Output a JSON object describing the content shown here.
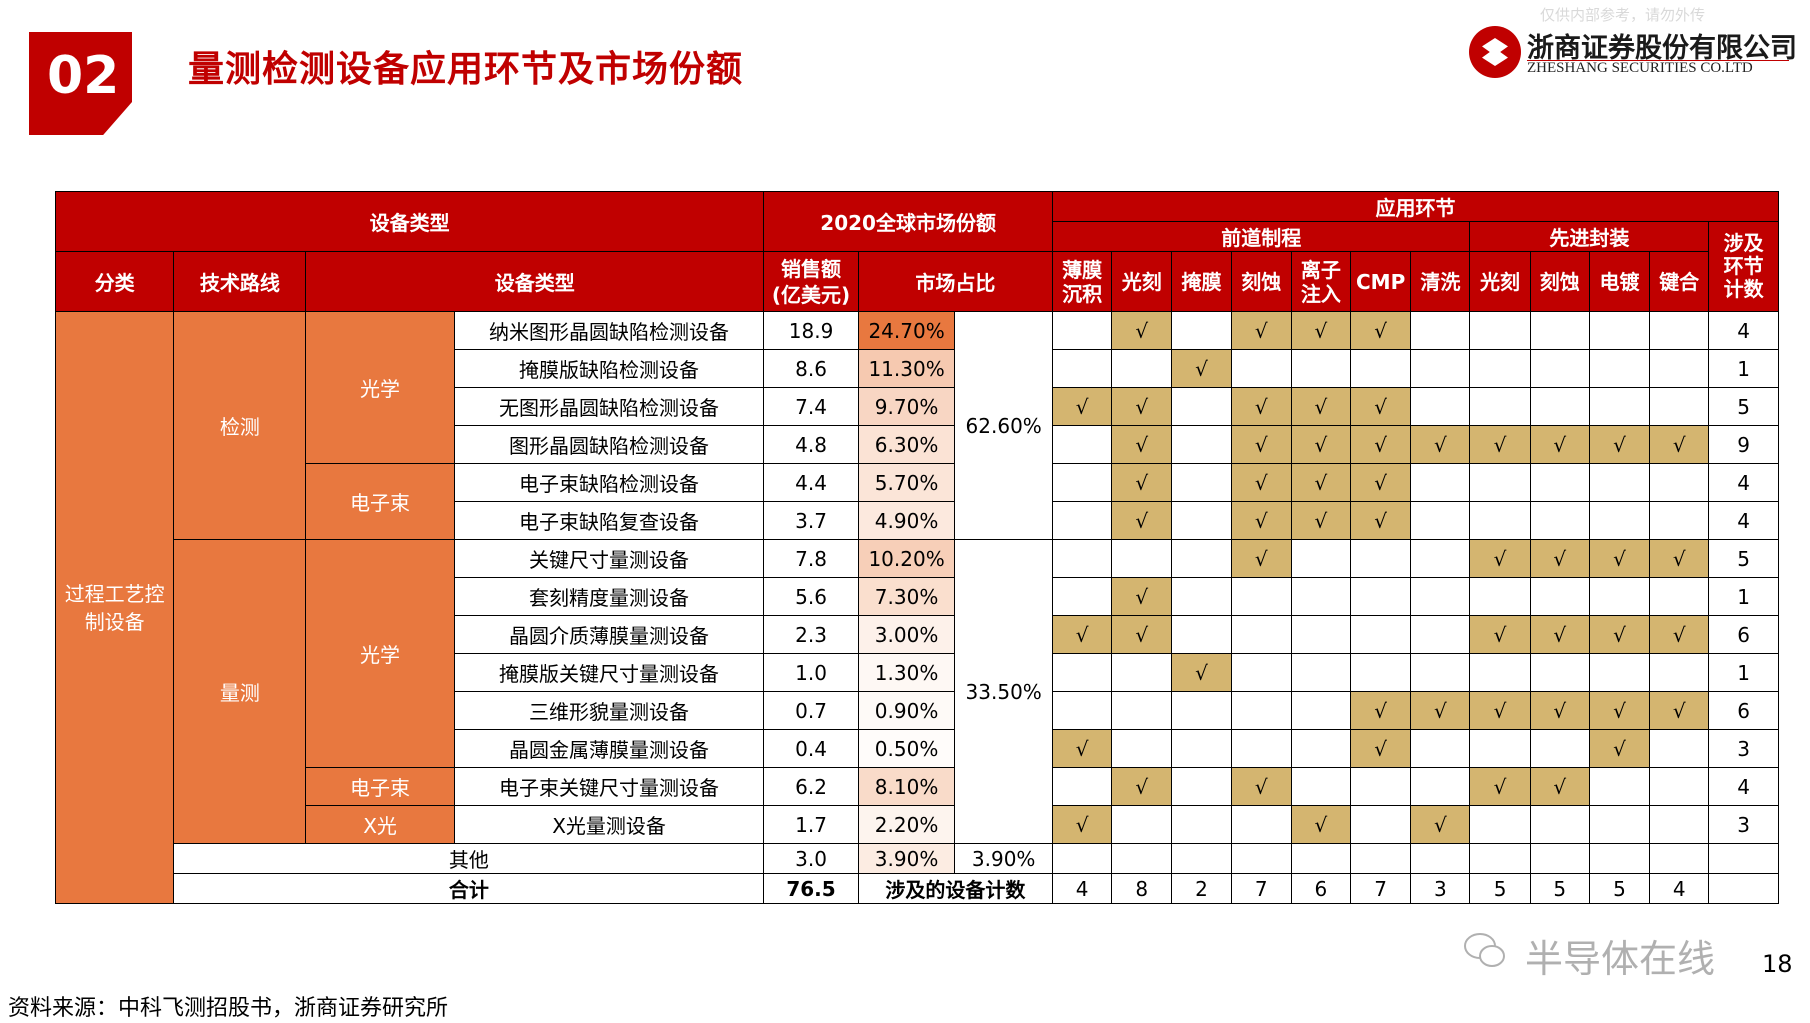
{
  "header": {
    "section_number": "02",
    "title": "量测检测设备应用环节及市场份额",
    "watermark": "仅供内部参考，请勿外传",
    "brand_cn": "浙商证券股份有限公司",
    "brand_en": "ZHESHANG SECURITIES CO.LTD"
  },
  "table": {
    "headers": {
      "equipment_type_group": "设备类型",
      "market_share_group": "2020全球市场份额",
      "application_group": "应用环节",
      "front_end": "前道制程",
      "advanced_packaging": "先进封装",
      "category": "分类",
      "tech_route": "技术路线",
      "equipment_type": "设备类型",
      "sales": "销售额(亿美元)",
      "share": "市场占比",
      "count_col": "涉及环节计数",
      "steps": [
        "薄膜沉积",
        "光刻",
        "掩膜",
        "刻蚀",
        "离子注入",
        "CMP",
        "清洗",
        "光刻",
        "刻蚀",
        "电镀",
        "键合"
      ]
    },
    "group_label": "过程工艺控制设备",
    "category_inspection": "检测",
    "category_measurement": "量测",
    "tech_optical_1": "光学",
    "tech_ebeam_1": "电子束",
    "tech_optical_2": "光学",
    "tech_ebeam_2": "电子束",
    "tech_xray": "X光",
    "subtotal_inspection": "62.60%",
    "subtotal_measurement": "33.50%",
    "rows": [
      {
        "name": "纳米图形晶圆缺陷检测设备",
        "sales": "18.9",
        "share": "24.70%",
        "share_color": "#e8783f",
        "checks": [
          false,
          true,
          false,
          true,
          true,
          true,
          false,
          false,
          false,
          false,
          false
        ],
        "count": "4"
      },
      {
        "name": "掩膜版缺陷检测设备",
        "sales": "8.6",
        "share": "11.30%",
        "share_color": "#f6c9b0",
        "checks": [
          false,
          false,
          true,
          false,
          false,
          false,
          false,
          false,
          false,
          false,
          false
        ],
        "count": "1"
      },
      {
        "name": "无图形晶圆缺陷检测设备",
        "sales": "7.4",
        "share": "9.70%",
        "share_color": "#f8d6c3",
        "checks": [
          true,
          true,
          false,
          true,
          true,
          true,
          false,
          false,
          false,
          false,
          false
        ],
        "count": "5"
      },
      {
        "name": "图形晶圆缺陷检测设备",
        "sales": "4.8",
        "share": "6.30%",
        "share_color": "#fbe3d5",
        "checks": [
          false,
          true,
          false,
          true,
          true,
          true,
          true,
          true,
          true,
          true,
          true
        ],
        "count": "9"
      },
      {
        "name": "电子束缺陷检测设备",
        "sales": "4.4",
        "share": "5.70%",
        "share_color": "#fbe5d8",
        "checks": [
          false,
          true,
          false,
          true,
          true,
          true,
          false,
          false,
          false,
          false,
          false
        ],
        "count": "4"
      },
      {
        "name": "电子束缺陷复查设备",
        "sales": "3.7",
        "share": "4.90%",
        "share_color": "#fce9de",
        "checks": [
          false,
          true,
          false,
          true,
          true,
          true,
          false,
          false,
          false,
          false,
          false
        ],
        "count": "4"
      },
      {
        "name": "关键尺寸量测设备",
        "sales": "7.8",
        "share": "10.20%",
        "share_color": "#f7cfb8",
        "checks": [
          false,
          false,
          false,
          true,
          false,
          false,
          false,
          true,
          true,
          true,
          true
        ],
        "count": "5"
      },
      {
        "name": "套刻精度量测设备",
        "sales": "5.6",
        "share": "7.30%",
        "share_color": "#fadfce",
        "checks": [
          false,
          true,
          false,
          false,
          false,
          false,
          false,
          false,
          false,
          false,
          false
        ],
        "count": "1"
      },
      {
        "name": "晶圆介质薄膜量测设备",
        "sales": "2.3",
        "share": "3.00%",
        "share_color": "#fdf1ea",
        "checks": [
          true,
          true,
          false,
          false,
          false,
          false,
          false,
          true,
          true,
          true,
          true
        ],
        "count": "6"
      },
      {
        "name": "掩膜版关键尺寸量测设备",
        "sales": "1.0",
        "share": "1.30%",
        "share_color": "#fef8f4",
        "checks": [
          false,
          false,
          true,
          false,
          false,
          false,
          false,
          false,
          false,
          false,
          false
        ],
        "count": "1"
      },
      {
        "name": "三维形貌量测设备",
        "sales": "0.7",
        "share": "0.90%",
        "share_color": "#fefaf7",
        "checks": [
          false,
          false,
          false,
          false,
          false,
          true,
          true,
          true,
          true,
          true,
          true
        ],
        "count": "6"
      },
      {
        "name": "晶圆金属薄膜量测设备",
        "sales": "0.4",
        "share": "0.50%",
        "share_color": "#fffcfa",
        "checks": [
          true,
          false,
          false,
          false,
          false,
          true,
          false,
          false,
          false,
          true,
          false
        ],
        "count": "3"
      },
      {
        "name": "电子束关键尺寸量测设备",
        "sales": "6.2",
        "share": "8.10%",
        "share_color": "#f9dbc9",
        "checks": [
          false,
          true,
          false,
          true,
          false,
          false,
          false,
          true,
          true,
          false,
          false
        ],
        "count": "4"
      },
      {
        "name": "X光量测设备",
        "sales": "1.7",
        "share": "2.20%",
        "share_color": "#fdf4ee",
        "checks": [
          true,
          false,
          false,
          false,
          true,
          false,
          true,
          false,
          false,
          false,
          false
        ],
        "count": "3"
      }
    ],
    "other": {
      "label": "其他",
      "sales": "3.0",
      "share": "3.90%",
      "share_color": "#fcece2",
      "subtotal": "3.90%"
    },
    "total": {
      "label": "合计",
      "sales": "76.5",
      "device_count_label": "涉及的设备计数",
      "step_counts": [
        "4",
        "8",
        "2",
        "7",
        "6",
        "7",
        "3",
        "5",
        "5",
        "5",
        "4"
      ]
    },
    "check_mark": "√",
    "check_color": "#d4b570"
  },
  "footer": {
    "source": "资料来源：中科飞测招股书，浙商证券研究所",
    "wechat_name": "半导体在线",
    "page_number": "18"
  }
}
